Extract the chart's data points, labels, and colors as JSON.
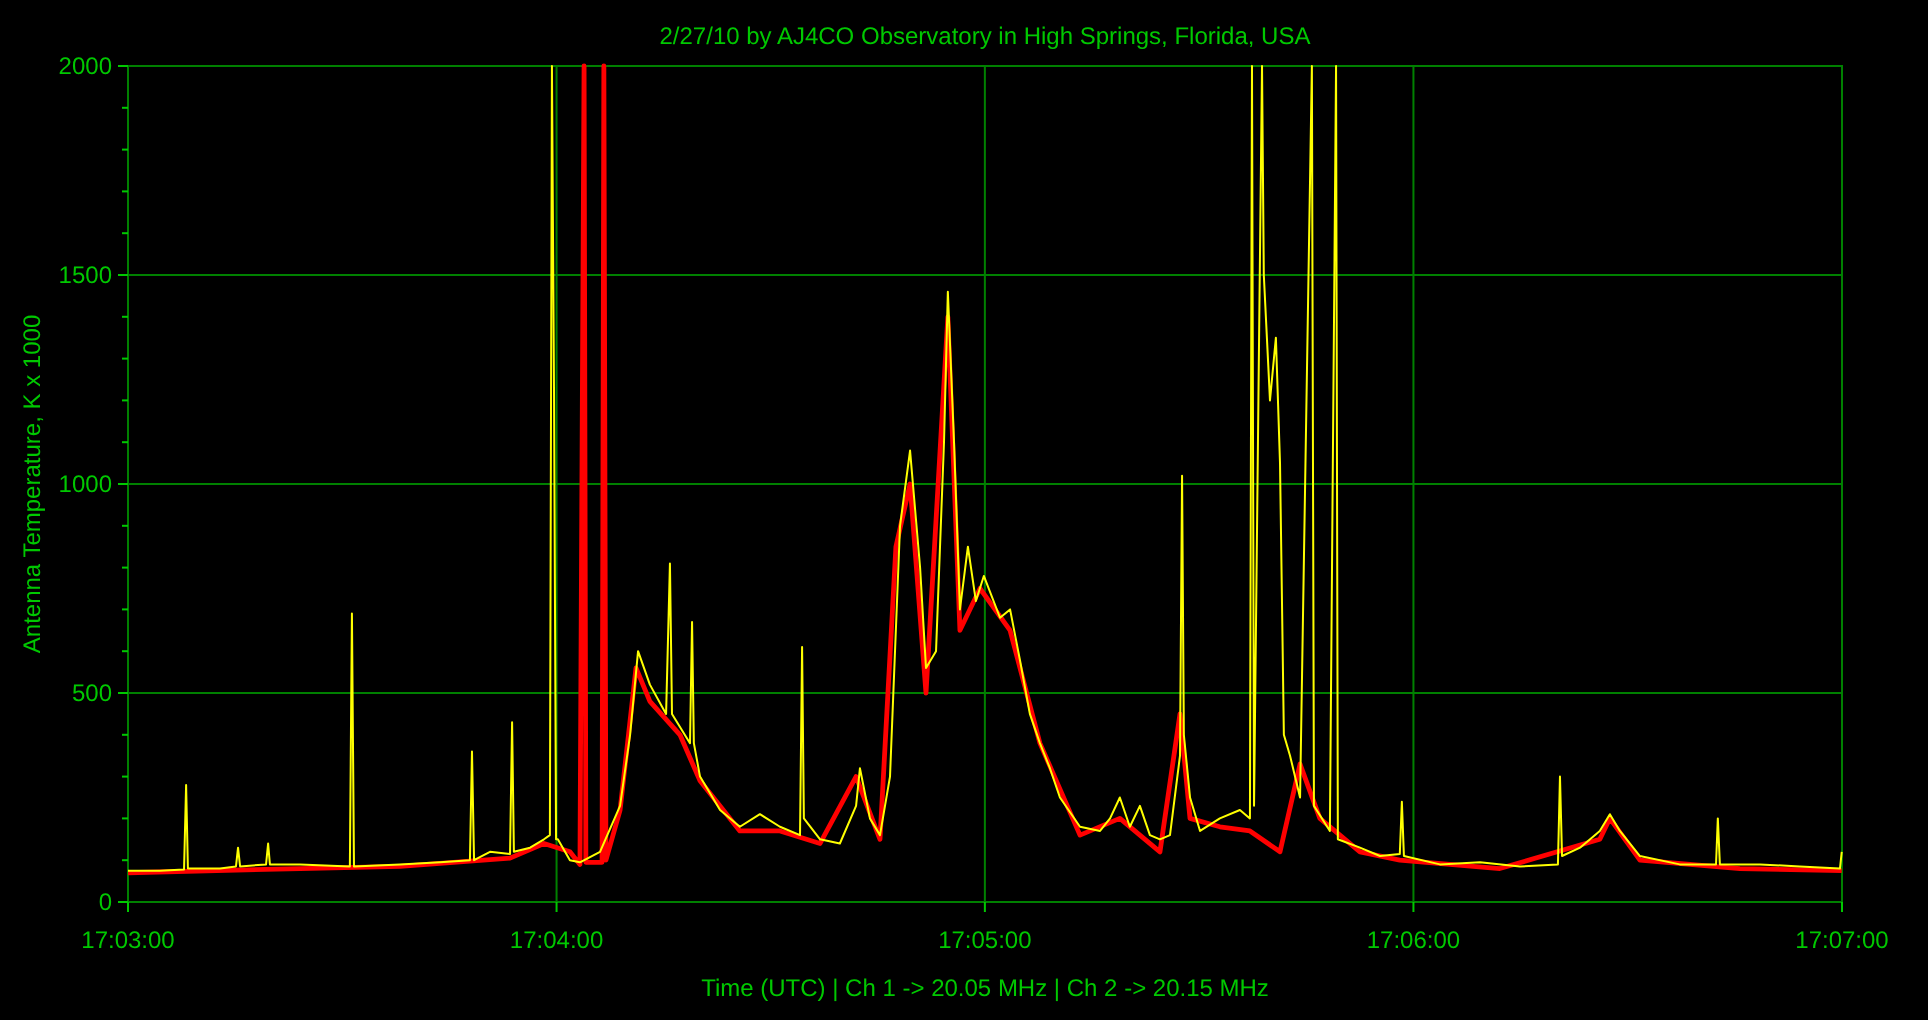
{
  "chart_data": {
    "type": "line",
    "title": "2/27/10  by  AJ4CO Observatory  in  High Springs, Florida, USA",
    "xlabel": "Time (UTC)  |  Ch 1 -> 20.05 MHz  |  Ch 2 -> 20.15 MHz",
    "ylabel": "Antenna Temperature, K x 1000",
    "xlim": [
      17.05,
      17.11667
    ],
    "xticks": [
      {
        "value": 17.05,
        "label": "17:03:00"
      },
      {
        "value": 17.06667,
        "label": "17:04:00"
      },
      {
        "value": 17.08333,
        "label": "17:05:00"
      },
      {
        "value": 17.1,
        "label": "17:06:00"
      },
      {
        "value": 17.11667,
        "label": "17:07:00"
      }
    ],
    "ylim": [
      0,
      2000
    ],
    "yticks": [
      0,
      {
        "value": 100,
        "label": null
      },
      {
        "value": 200,
        "label": null
      },
      {
        "value": 300,
        "label": null
      },
      {
        "value": 400,
        "label": null
      },
      500,
      {
        "value": 600,
        "label": null
      },
      {
        "value": 700,
        "label": null
      },
      {
        "value": 800,
        "label": null
      },
      {
        "value": 900,
        "label": null
      },
      1000,
      {
        "value": 1100,
        "label": null
      },
      {
        "value": 1200,
        "label": null
      },
      {
        "value": 1300,
        "label": null
      },
      {
        "value": 1400,
        "label": null
      },
      1500,
      {
        "value": 1600,
        "label": null
      },
      {
        "value": 1700,
        "label": null
      },
      {
        "value": 1800,
        "label": null
      },
      {
        "value": 1900,
        "label": null
      },
      2000
    ],
    "grid": true,
    "marker": "none",
    "line_style": "solid",
    "series": [
      {
        "color": "#ff0000",
        "x": [
          17.05,
          17.05669,
          17.06058,
          17.06486,
          17.06618,
          17.06719,
          17.06758,
          17.06774,
          17.06781,
          17.06844,
          17.06851,
          17.06859,
          17.06914,
          17.06976,
          17.0703,
          17.07147,
          17.07225,
          17.0738,
          17.07536,
          17.07692,
          17.07832,
          17.07925,
          17.07987,
          17.08042,
          17.08104,
          17.08189,
          17.08236,
          17.08314,
          17.08431,
          17.08547,
          17.08703,
          17.08858,
          17.09014,
          17.09092,
          17.09131,
          17.09247,
          17.09364,
          17.09481,
          17.09559,
          17.09636,
          17.09792,
          17.09947,
          17.10336,
          17.10725,
          17.10764,
          17.10881,
          17.1127,
          17.11666
        ],
        "values": [
          70,
          80,
          85,
          105,
          140,
          120,
          90,
          2000,
          95,
          95,
          2000,
          100,
          220,
          560,
          480,
          400,
          290,
          170,
          170,
          140,
          300,
          150,
          850,
          1000,
          500,
          1400,
          650,
          750,
          650,
          380,
          160,
          200,
          120,
          450,
          200,
          180,
          170,
          120,
          330,
          200,
          120,
          100,
          80,
          150,
          200,
          100,
          80,
          75
        ]
      },
      {
        "color": "#ffff00",
        "x": [
          17.05,
          17.05124,
          17.05218,
          17.05226,
          17.05233,
          17.05358,
          17.0542,
          17.05428,
          17.05436,
          17.05537,
          17.05545,
          17.05552,
          17.05669,
          17.05863,
          17.05871,
          17.05879,
          17.06058,
          17.06214,
          17.0633,
          17.06338,
          17.06346,
          17.06408,
          17.06486,
          17.06494,
          17.06501,
          17.06564,
          17.06618,
          17.06641,
          17.06649,
          17.06657,
          17.06665,
          17.06672,
          17.06719,
          17.06758,
          17.06836,
          17.06914,
          17.06953,
          17.06984,
          17.0703,
          17.07093,
          17.07108,
          17.07116,
          17.07186,
          17.07194,
          17.07201,
          17.07225,
          17.07303,
          17.0738,
          17.07458,
          17.07536,
          17.07614,
          17.07622,
          17.07629,
          17.07692,
          17.07769,
          17.07832,
          17.07847,
          17.07886,
          17.07925,
          17.07964,
          17.08003,
          17.08042,
          17.08081,
          17.08104,
          17.08143,
          17.08174,
          17.08189,
          17.08213,
          17.08236,
          17.08267,
          17.08298,
          17.08329,
          17.08392,
          17.08431,
          17.08469,
          17.08508,
          17.08547,
          17.08586,
          17.08625,
          17.08703,
          17.08781,
          17.0882,
          17.08858,
          17.08897,
          17.08936,
          17.08975,
          17.09014,
          17.09053,
          17.09092,
          17.091,
          17.09107,
          17.09131,
          17.0917,
          17.09247,
          17.09325,
          17.09364,
          17.09372,
          17.0938,
          17.09411,
          17.09418,
          17.09442,
          17.09465,
          17.09481,
          17.09496,
          17.0952,
          17.09559,
          17.09605,
          17.09613,
          17.09675,
          17.09699,
          17.09706,
          17.09792,
          17.0987,
          17.09947,
          17.09955,
          17.09963,
          17.10103,
          17.10259,
          17.10414,
          17.10562,
          17.1057,
          17.10578,
          17.10648,
          17.10725,
          17.10764,
          17.10803,
          17.10881,
          17.11036,
          17.11177,
          17.11184,
          17.11192,
          17.11348,
          17.11503,
          17.11659,
          17.11666
        ],
        "values": [
          75,
          75,
          78,
          280,
          80,
          80,
          85,
          130,
          85,
          90,
          140,
          90,
          90,
          85,
          690,
          85,
          90,
          95,
          100,
          360,
          100,
          120,
          115,
          430,
          120,
          130,
          150,
          160,
          2000,
          1230,
          150,
          150,
          100,
          95,
          120,
          230,
          400,
          600,
          520,
          450,
          810,
          450,
          380,
          670,
          380,
          300,
          220,
          180,
          210,
          180,
          160,
          610,
          200,
          150,
          140,
          230,
          320,
          200,
          160,
          300,
          900,
          1080,
          800,
          560,
          600,
          1100,
          1460,
          1100,
          700,
          850,
          720,
          780,
          680,
          700,
          580,
          450,
          380,
          320,
          250,
          180,
          170,
          200,
          250,
          180,
          230,
          160,
          150,
          160,
          350,
          1020,
          400,
          250,
          170,
          200,
          220,
          200,
          2000,
          230,
          2000,
          1500,
          1200,
          1350,
          1050,
          400,
          350,
          250,
          2000,
          230,
          170,
          2000,
          150,
          130,
          110,
          115,
          240,
          110,
          90,
          95,
          85,
          90,
          300,
          110,
          130,
          170,
          210,
          170,
          110,
          90,
          90,
          200,
          90,
          90,
          85,
          80,
          120
        ]
      }
    ]
  }
}
